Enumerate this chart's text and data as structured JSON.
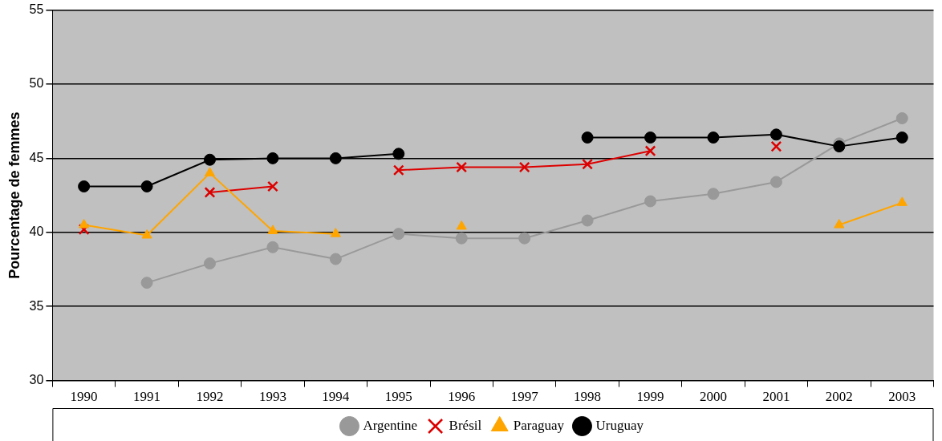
{
  "chart_data": {
    "type": "line",
    "ylabel": "Pourcentage de femmes",
    "categories": [
      "1990",
      "1991",
      "1992",
      "1993",
      "1994",
      "1995",
      "1996",
      "1997",
      "1998",
      "1999",
      "2000",
      "2001",
      "2002",
      "2003"
    ],
    "series": [
      {
        "name": "Argentine",
        "color": "#999999",
        "marker": "circle",
        "values": [
          null,
          36.6,
          37.9,
          39.0,
          38.2,
          39.9,
          39.6,
          39.6,
          40.8,
          42.1,
          42.6,
          43.4,
          46.0,
          47.7
        ]
      },
      {
        "name": "Brésil",
        "color": "#dd0000",
        "marker": "cross",
        "values": [
          40.2,
          null,
          42.7,
          43.1,
          null,
          44.2,
          44.4,
          44.4,
          44.6,
          45.5,
          null,
          45.8,
          null,
          null
        ]
      },
      {
        "name": "Paraguay",
        "color": "#ffa500",
        "marker": "triangle",
        "values": [
          40.5,
          39.8,
          44.0,
          40.1,
          39.9,
          null,
          40.4,
          null,
          null,
          null,
          null,
          null,
          40.5,
          42.0
        ]
      },
      {
        "name": "Uruguay",
        "color": "#000000",
        "marker": "circle",
        "values": [
          43.1,
          43.1,
          44.9,
          45.0,
          45.0,
          45.3,
          null,
          null,
          46.4,
          46.4,
          46.4,
          46.6,
          45.8,
          46.4
        ]
      }
    ],
    "ylim": [
      30,
      55
    ],
    "yticks": [
      30,
      35,
      40,
      45,
      50,
      55
    ],
    "grid": "y",
    "legend": "bottom",
    "line_style": "solid"
  }
}
